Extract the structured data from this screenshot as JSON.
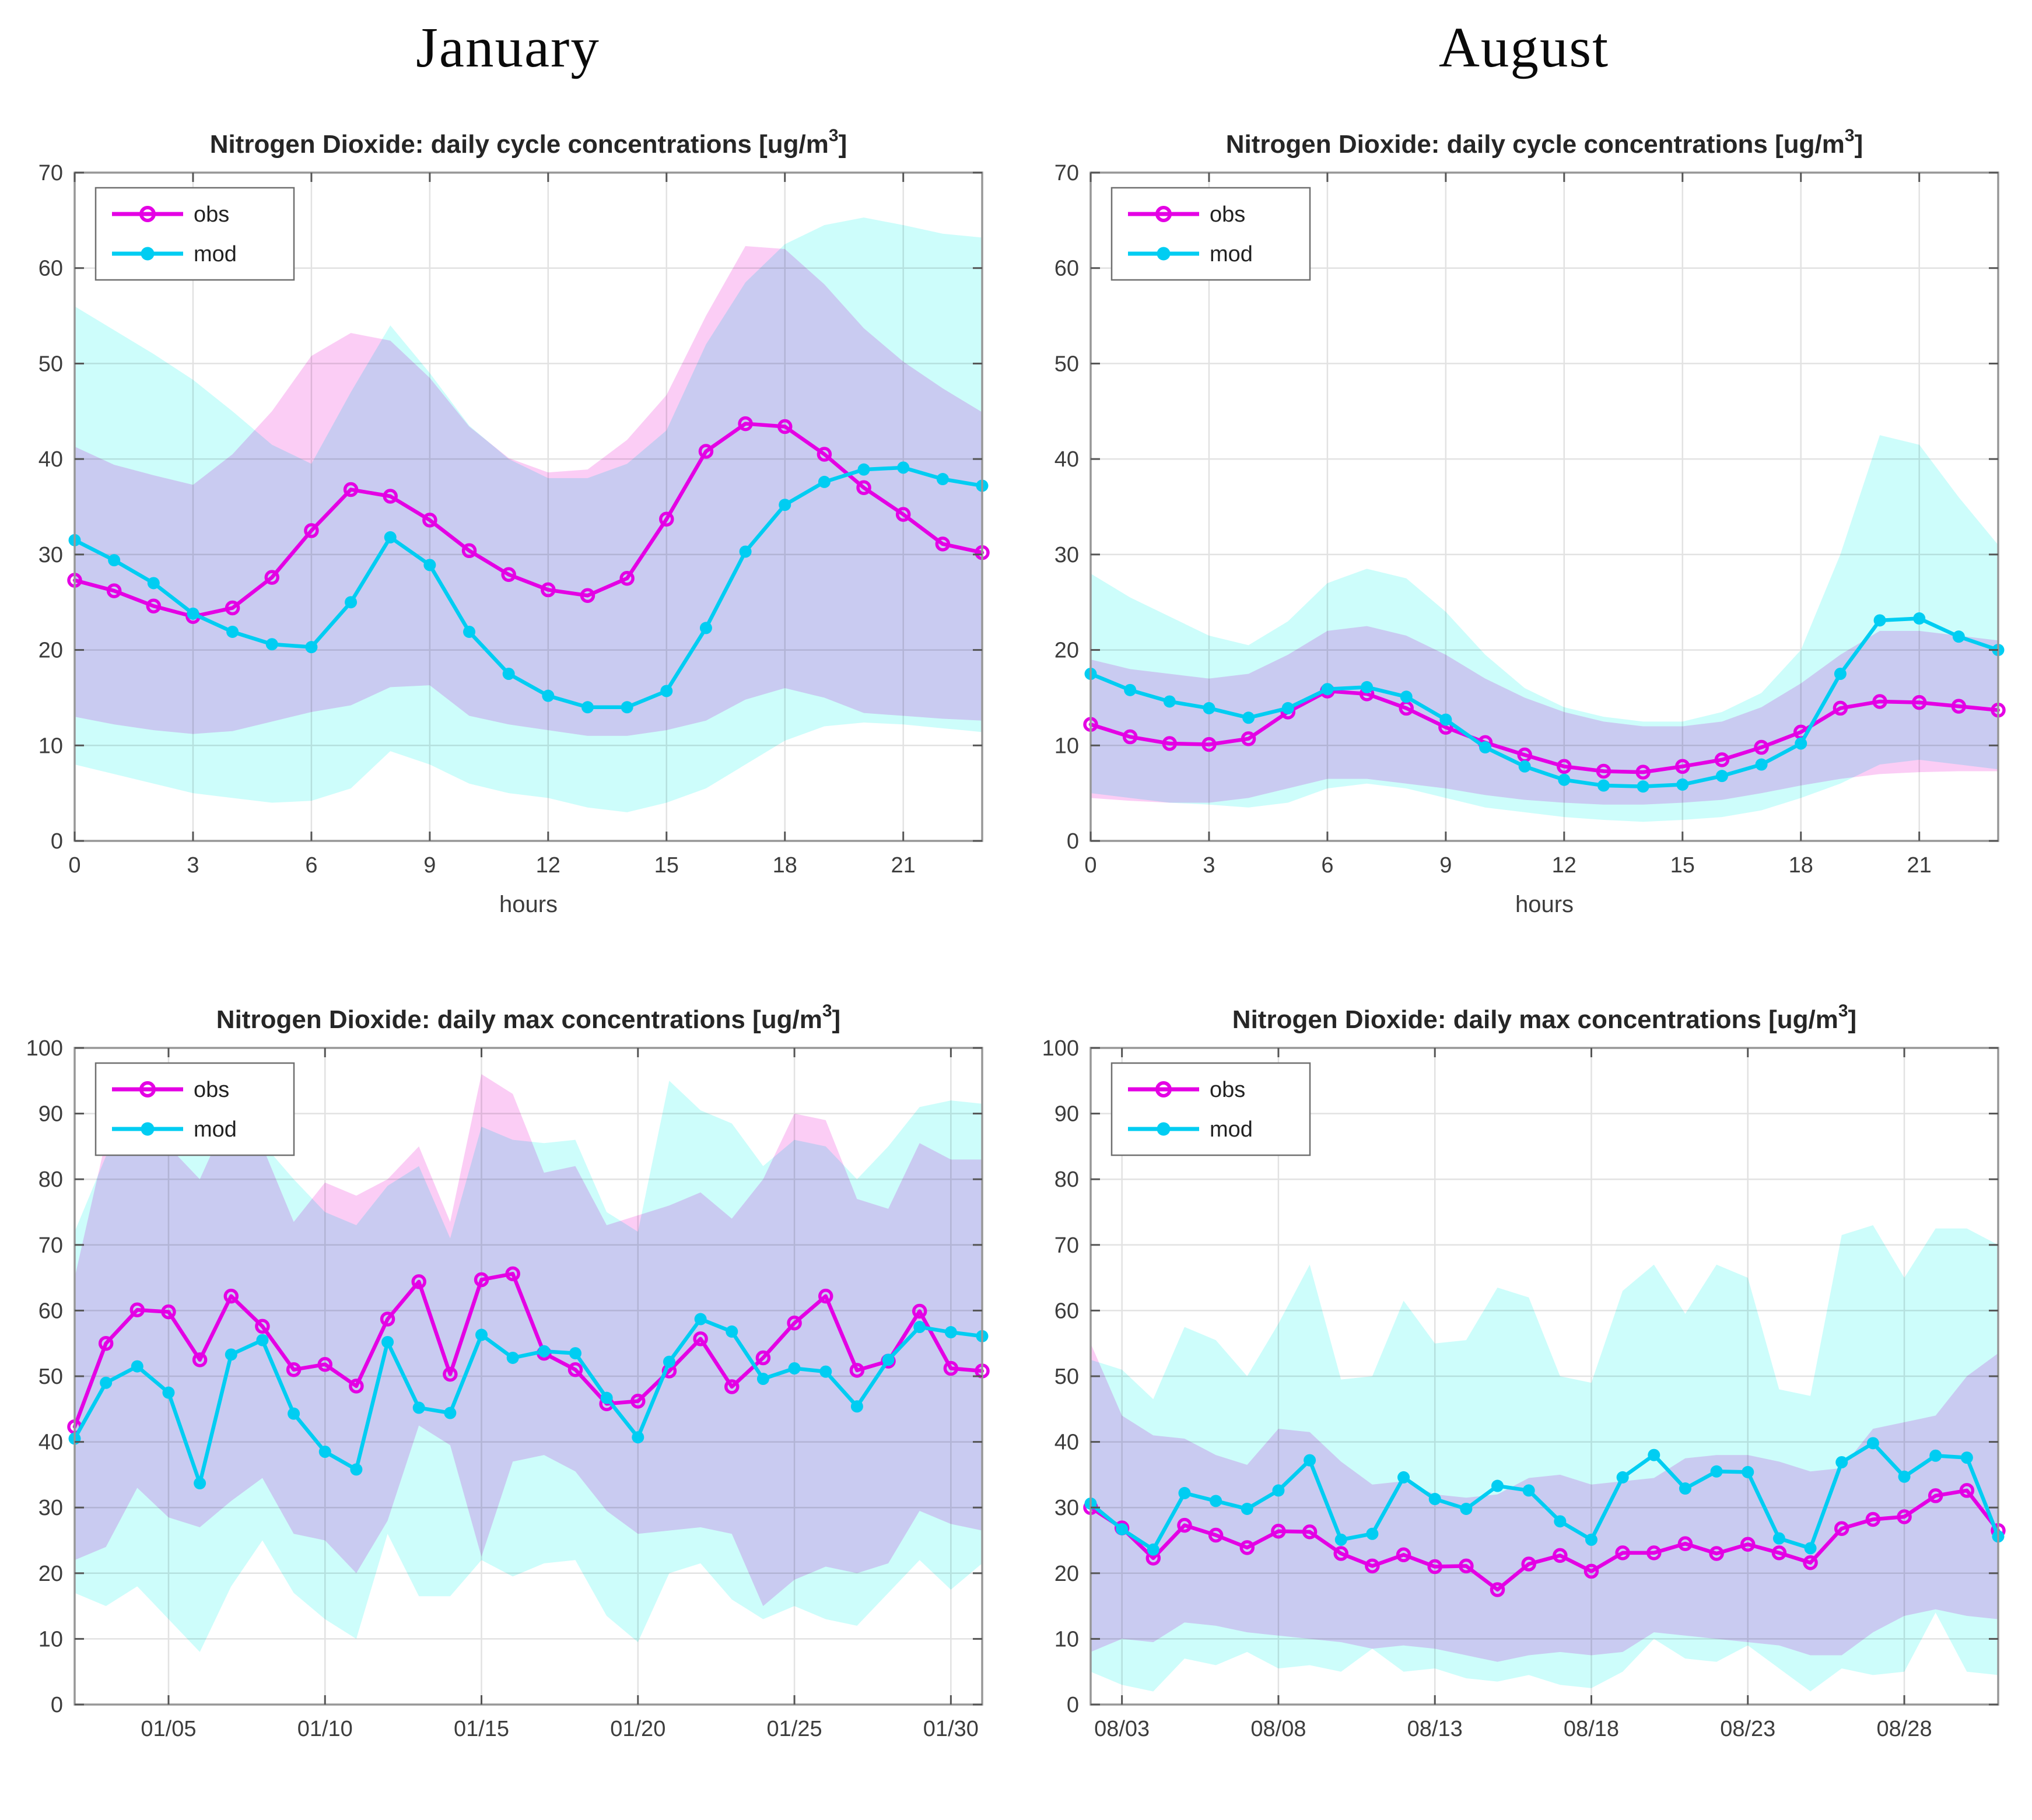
{
  "page": {
    "left_header": "January",
    "right_header": "August"
  },
  "titles": {
    "cycle_pre": "Nitrogen Dioxide: daily cycle concentrations [ug/m",
    "max_pre": "Nitrogen Dioxide: daily max concentrations [ug/m",
    "sup": "3",
    "post": "]"
  },
  "legend": {
    "obs": "obs",
    "mod": "mod"
  },
  "colors": {
    "obs_line": "#e400e4",
    "mod_line": "#00cdf2",
    "obs_band": "#fbcdf5",
    "mod_band": "#cdfdfb",
    "grid": "#e2e2e2",
    "axis": "#979797",
    "tick_mark": "#555555",
    "tick_label": "#3c3c3c",
    "title": "#262626"
  },
  "chart_data": [
    {
      "id": "jan-cycle",
      "type": "line",
      "row": "top",
      "title_kind": "cycle",
      "xlabel": "hours",
      "xlim": [
        0,
        23
      ],
      "ylim": [
        0,
        70
      ],
      "xtick_vals": [
        0,
        3,
        6,
        9,
        12,
        15,
        18,
        21
      ],
      "xtick_labels": [
        "0",
        "3",
        "6",
        "9",
        "12",
        "15",
        "18",
        "21"
      ],
      "ytick_vals": [
        0,
        10,
        20,
        30,
        40,
        50,
        60,
        70
      ],
      "x": [
        0,
        1,
        2,
        3,
        4,
        5,
        6,
        7,
        8,
        9,
        10,
        11,
        12,
        13,
        14,
        15,
        16,
        17,
        18,
        19,
        20,
        21,
        22,
        23
      ],
      "series": [
        {
          "name": "obs",
          "values": [
            27.3,
            26.2,
            24.6,
            23.5,
            24.4,
            27.6,
            32.5,
            36.8,
            36.1,
            33.6,
            30.4,
            27.9,
            26.3,
            25.7,
            27.5,
            33.7,
            40.8,
            43.7,
            43.4,
            40.5,
            37.0,
            34.2,
            31.1,
            30.2
          ]
        },
        {
          "name": "mod",
          "values": [
            31.5,
            29.4,
            27.0,
            23.8,
            21.9,
            20.6,
            20.3,
            25.0,
            31.8,
            28.9,
            21.9,
            17.5,
            15.2,
            14.0,
            14.0,
            15.7,
            22.3,
            30.3,
            35.2,
            37.6,
            38.9,
            39.1,
            37.9,
            37.2
          ]
        }
      ],
      "bands": [
        {
          "series": "mod",
          "hi": [
            56.0,
            53.5,
            51.0,
            48.3,
            45.0,
            41.5,
            39.5,
            47.0,
            54.0,
            49.0,
            43.5,
            40.0,
            38.0,
            38.0,
            39.5,
            43.0,
            52.0,
            58.5,
            62.5,
            64.5,
            65.3,
            64.5,
            63.6,
            63.2
          ],
          "lo": [
            8.0,
            7.0,
            6.0,
            5.0,
            4.5,
            4.0,
            4.2,
            5.5,
            9.4,
            8.0,
            6.0,
            5.0,
            4.5,
            3.5,
            3.0,
            4.0,
            5.5,
            8.0,
            10.5,
            12.0,
            12.4,
            12.2,
            11.8,
            11.4
          ]
        },
        {
          "series": "obs",
          "hi": [
            41.3,
            39.4,
            38.3,
            37.3,
            40.5,
            45.0,
            50.8,
            53.2,
            52.4,
            48.5,
            43.4,
            40.1,
            38.6,
            38.9,
            42.0,
            46.7,
            55.0,
            62.3,
            62.0,
            58.3,
            53.7,
            50.2,
            47.4,
            44.9
          ],
          "lo": [
            13.0,
            12.2,
            11.6,
            11.2,
            11.5,
            12.5,
            13.5,
            14.2,
            16.1,
            16.3,
            13.1,
            12.2,
            11.6,
            11.0,
            11.0,
            11.6,
            12.6,
            14.8,
            16.0,
            15.0,
            13.4,
            13.1,
            12.8,
            12.6
          ]
        }
      ]
    },
    {
      "id": "aug-cycle",
      "type": "line",
      "row": "top",
      "title_kind": "cycle",
      "xlabel": "hours",
      "xlim": [
        0,
        23
      ],
      "ylim": [
        0,
        70
      ],
      "xtick_vals": [
        0,
        3,
        6,
        9,
        12,
        15,
        18,
        21
      ],
      "xtick_labels": [
        "0",
        "3",
        "6",
        "9",
        "12",
        "15",
        "18",
        "21"
      ],
      "ytick_vals": [
        0,
        10,
        20,
        30,
        40,
        50,
        60,
        70
      ],
      "x": [
        0,
        1,
        2,
        3,
        4,
        5,
        6,
        7,
        8,
        9,
        10,
        11,
        12,
        13,
        14,
        15,
        16,
        17,
        18,
        19,
        20,
        21,
        22,
        23
      ],
      "series": [
        {
          "name": "obs",
          "values": [
            12.2,
            10.9,
            10.2,
            10.1,
            10.7,
            13.5,
            15.7,
            15.4,
            13.9,
            11.9,
            10.3,
            9.0,
            7.8,
            7.3,
            7.2,
            7.8,
            8.5,
            9.8,
            11.4,
            13.9,
            14.6,
            14.5,
            14.1,
            13.7
          ]
        },
        {
          "name": "mod",
          "values": [
            17.5,
            15.8,
            14.6,
            13.9,
            12.9,
            13.9,
            15.9,
            16.1,
            15.1,
            12.7,
            9.8,
            7.8,
            6.4,
            5.8,
            5.7,
            5.9,
            6.8,
            8.0,
            10.2,
            17.5,
            23.1,
            23.3,
            21.4,
            20.0
          ]
        }
      ],
      "bands": [
        {
          "series": "mod",
          "hi": [
            28.0,
            25.5,
            23.5,
            21.5,
            20.5,
            23.0,
            27.0,
            28.5,
            27.5,
            24.0,
            19.5,
            16.0,
            14.0,
            13.0,
            12.5,
            12.5,
            13.5,
            15.5,
            20.0,
            30.0,
            42.5,
            41.5,
            36.0,
            31.0
          ],
          "lo": [
            5.0,
            4.5,
            4.0,
            3.8,
            3.5,
            4.0,
            5.5,
            6.0,
            5.5,
            4.5,
            3.5,
            3.0,
            2.5,
            2.2,
            2.0,
            2.2,
            2.5,
            3.2,
            4.5,
            6.0,
            8.0,
            8.5,
            8.0,
            7.5
          ]
        },
        {
          "series": "obs",
          "hi": [
            19.0,
            18.0,
            17.5,
            17.0,
            17.5,
            19.5,
            22.0,
            22.5,
            21.5,
            19.5,
            17.0,
            15.0,
            13.5,
            12.5,
            12.0,
            12.0,
            12.5,
            14.0,
            16.5,
            19.5,
            22.0,
            22.0,
            21.5,
            21.0
          ],
          "lo": [
            4.5,
            4.2,
            4.0,
            4.0,
            4.5,
            5.5,
            6.5,
            6.5,
            6.0,
            5.5,
            4.8,
            4.3,
            4.0,
            3.8,
            3.8,
            4.0,
            4.3,
            5.0,
            5.8,
            6.5,
            7.0,
            7.2,
            7.3,
            7.3
          ]
        }
      ]
    },
    {
      "id": "jan-max",
      "type": "line",
      "row": "bottom",
      "title_kind": "max",
      "xlabel": "",
      "xlim": [
        2,
        31
      ],
      "ylim": [
        0,
        100
      ],
      "xtick_vals": [
        5,
        10,
        15,
        20,
        25,
        30
      ],
      "xtick_labels": [
        "01/05",
        "01/10",
        "01/15",
        "01/20",
        "01/25",
        "01/30"
      ],
      "ytick_vals": [
        0,
        10,
        20,
        30,
        40,
        50,
        60,
        70,
        80,
        90,
        100
      ],
      "x": [
        2,
        3,
        4,
        5,
        6,
        7,
        8,
        9,
        10,
        11,
        12,
        13,
        14,
        15,
        16,
        17,
        18,
        19,
        20,
        21,
        22,
        23,
        24,
        25,
        26,
        27,
        28,
        29,
        30,
        31
      ],
      "series": [
        {
          "name": "obs",
          "values": [
            42.3,
            55.0,
            60.1,
            59.8,
            52.5,
            62.2,
            57.6,
            51.0,
            51.8,
            48.5,
            58.7,
            64.4,
            50.3,
            64.7,
            65.6,
            53.5,
            51.0,
            45.8,
            46.2,
            50.8,
            55.7,
            48.4,
            52.8,
            58.1,
            62.2,
            50.9,
            52.3,
            59.9,
            51.2,
            50.8
          ]
        },
        {
          "name": "mod",
          "values": [
            40.5,
            49.0,
            51.5,
            47.5,
            33.7,
            53.3,
            55.5,
            44.3,
            38.5,
            35.8,
            55.2,
            45.2,
            44.4,
            56.3,
            52.8,
            53.8,
            53.5,
            46.7,
            40.7,
            52.2,
            58.7,
            56.8,
            49.6,
            51.2,
            50.7,
            45.4,
            52.5,
            57.5,
            56.7,
            56.1
          ]
        }
      ],
      "bands": [
        {
          "series": "mod",
          "hi": [
            72,
            83.5,
            84.5,
            86,
            86,
            86,
            85.5,
            80,
            75,
            73,
            79,
            82,
            71,
            88,
            86,
            85.5,
            86,
            75,
            72,
            95,
            90.5,
            88.5,
            82,
            86,
            85,
            80,
            85,
            91,
            92,
            91.5
          ],
          "lo": [
            17,
            15,
            18,
            13,
            8,
            18,
            25,
            17,
            13,
            10,
            26,
            16.5,
            16.5,
            22,
            19.5,
            21.5,
            22,
            13.5,
            9.5,
            20,
            21.5,
            16,
            13,
            15,
            13,
            12,
            17,
            22,
            17.5,
            21.5
          ]
        },
        {
          "series": "obs",
          "hi": [
            65,
            86,
            90,
            85,
            80,
            90.5,
            85,
            73.5,
            79.5,
            77.5,
            80,
            85,
            73.5,
            96,
            93,
            81,
            82,
            73,
            74.5,
            76,
            78,
            74,
            80,
            90,
            89,
            77,
            75.5,
            85.5,
            83,
            83
          ],
          "lo": [
            22,
            24,
            33,
            28.5,
            27,
            31,
            34.5,
            26,
            25,
            20,
            28,
            42.5,
            39.5,
            22.5,
            37,
            38,
            35.5,
            29.5,
            26,
            26.5,
            27,
            26,
            15,
            19,
            21,
            20,
            21.5,
            29.5,
            27.5,
            26.5
          ]
        }
      ]
    },
    {
      "id": "aug-max",
      "type": "line",
      "row": "bottom",
      "title_kind": "max",
      "xlabel": "",
      "xlim": [
        2,
        31
      ],
      "ylim": [
        0,
        100
      ],
      "xtick_vals": [
        3,
        8,
        13,
        18,
        23,
        28
      ],
      "xtick_labels": [
        "08/03",
        "08/08",
        "08/13",
        "08/18",
        "08/23",
        "08/28"
      ],
      "ytick_vals": [
        0,
        10,
        20,
        30,
        40,
        50,
        60,
        70,
        80,
        90,
        100
      ],
      "x": [
        2,
        3,
        4,
        5,
        6,
        7,
        8,
        9,
        10,
        11,
        12,
        13,
        14,
        15,
        16,
        17,
        18,
        19,
        20,
        21,
        22,
        23,
        24,
        25,
        26,
        27,
        28,
        29,
        30,
        31
      ],
      "series": [
        {
          "name": "obs",
          "values": [
            30.0,
            26.9,
            22.3,
            27.3,
            25.8,
            23.9,
            26.4,
            26.3,
            23.0,
            21.1,
            22.8,
            21.0,
            21.1,
            17.5,
            21.4,
            22.7,
            20.3,
            23.1,
            23.1,
            24.5,
            23.0,
            24.4,
            23.1,
            21.6,
            26.8,
            28.2,
            28.6,
            31.8,
            32.6,
            26.5
          ]
        },
        {
          "name": "mod",
          "values": [
            30.6,
            26.7,
            23.6,
            32.2,
            31.0,
            29.8,
            32.6,
            37.2,
            25.1,
            26.0,
            34.6,
            31.3,
            29.8,
            33.3,
            32.6,
            27.9,
            25.1,
            34.6,
            38.0,
            32.9,
            35.5,
            35.4,
            25.3,
            23.8,
            36.9,
            39.8,
            34.7,
            37.9,
            37.6,
            25.6
          ]
        }
      ],
      "bands": [
        {
          "series": "mod",
          "hi": [
            52.5,
            51,
            46.5,
            57.5,
            55.5,
            50,
            58,
            67,
            49.5,
            50,
            61.5,
            55,
            55.5,
            63.5,
            62,
            50,
            49,
            63,
            67,
            59.5,
            67,
            65,
            48,
            47,
            71.5,
            73,
            65,
            72.5,
            72.5,
            70
          ],
          "lo": [
            5,
            3,
            2,
            7,
            6,
            8,
            5.5,
            6,
            5,
            8.5,
            5,
            5.5,
            4,
            3.5,
            4.5,
            3,
            2.5,
            5,
            10,
            7,
            6.5,
            9,
            5.5,
            2,
            5.5,
            4.5,
            5,
            14,
            5,
            4.5
          ]
        },
        {
          "series": "obs",
          "hi": [
            55,
            44,
            41,
            40.5,
            38,
            36.5,
            42,
            41.5,
            37,
            33.5,
            34,
            32,
            31.5,
            32,
            34.5,
            35,
            33.5,
            34,
            34.5,
            37.5,
            38,
            38,
            37,
            35.5,
            36,
            42,
            43,
            44,
            50,
            53.5
          ],
          "lo": [
            8,
            10,
            9.5,
            12.5,
            12,
            11,
            10.5,
            10,
            9.5,
            8.5,
            9,
            8.5,
            7.5,
            6.5,
            7.5,
            8,
            7.5,
            8,
            11,
            10.5,
            10,
            9.5,
            9,
            7.5,
            7.5,
            11,
            13.5,
            14.5,
            13.5,
            13
          ]
        }
      ]
    }
  ]
}
